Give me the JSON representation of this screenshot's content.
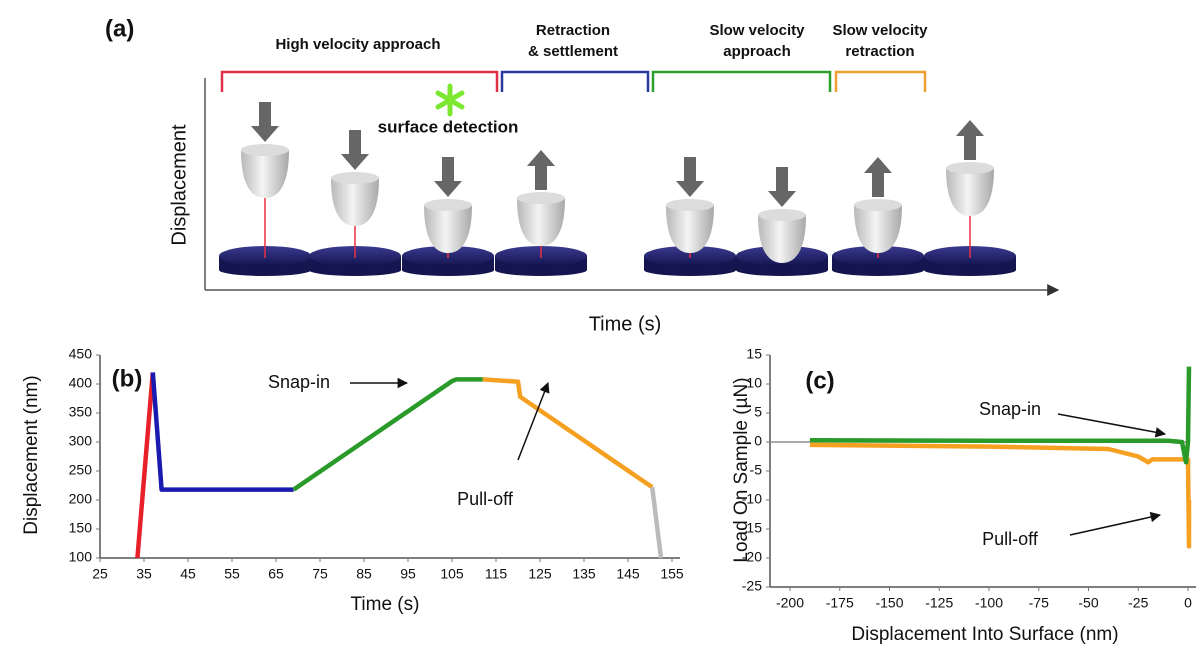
{
  "diagram": {
    "panel_label": "(a)",
    "phases": [
      {
        "lines": [
          "High velocity approach"
        ],
        "color": "#e03048"
      },
      {
        "lines": [
          "Retraction",
          "& settlement"
        ],
        "color": "#2a3a9c"
      },
      {
        "lines": [
          "Slow velocity",
          "approach"
        ],
        "color": "#2aa02a"
      },
      {
        "lines": [
          "Slow velocity",
          "retraction"
        ],
        "color": "#f0a030"
      }
    ],
    "annotation": "surface detection",
    "y_label": "Displacement",
    "x_label": "Time (s)"
  },
  "chart_data": [
    {
      "type": "line",
      "panel_label": "(b)",
      "x_label": "Time (s)",
      "y_label": "Displacement (nm)",
      "xlim": [
        25,
        155
      ],
      "xticks": [
        25,
        35,
        45,
        55,
        65,
        75,
        85,
        95,
        105,
        115,
        125,
        135,
        145,
        155
      ],
      "ylim": [
        100,
        450
      ],
      "yticks": [
        100,
        150,
        200,
        250,
        300,
        350,
        400,
        450
      ],
      "series": [
        {
          "color": "#e8202a",
          "x": [
            33.5,
            37
          ],
          "values": [
            100,
            420
          ]
        },
        {
          "color": "#1a1ab0",
          "x": [
            37,
            39,
            69
          ],
          "values": [
            420,
            218,
            218
          ]
        },
        {
          "color": "#2a9a2a",
          "x": [
            69,
            105,
            106,
            112
          ],
          "values": [
            218,
            405,
            408,
            408
          ]
        },
        {
          "color": "#f5a020",
          "x": [
            112,
            120,
            120.5,
            150.5
          ],
          "values": [
            408,
            404,
            378,
            222
          ]
        },
        {
          "color": "#bbbbbb",
          "x": [
            150.5,
            152.5
          ],
          "values": [
            222,
            100
          ]
        }
      ],
      "annotations": [
        "Snap-in",
        "Pull-off"
      ]
    },
    {
      "type": "line",
      "panel_label": "(c)",
      "x_label": "Displacement Into Surface (nm)",
      "y_label": "Load On Sample (µN)",
      "xlim": [
        -200,
        0
      ],
      "xticks": [
        -200,
        -175,
        -150,
        -125,
        -100,
        -75,
        -50,
        -25,
        0
      ],
      "ylim": [
        -25,
        15
      ],
      "yticks": [
        -25,
        -20,
        -15,
        -10,
        -5,
        0,
        5,
        10,
        15
      ],
      "series": [
        {
          "color": "#f5a020",
          "x": [
            -190,
            -100,
            -40,
            -25,
            -20,
            -18,
            0,
            0.5,
            0.5
          ],
          "values": [
            -0.5,
            -0.8,
            -1.2,
            -2.5,
            -3.5,
            -3,
            -3,
            -18,
            -10
          ]
        },
        {
          "color": "#2a9a2a",
          "x": [
            -190,
            -100,
            -10,
            -3,
            -1,
            0,
            0.5
          ],
          "values": [
            0.3,
            0.2,
            0.2,
            0,
            -3.5,
            0,
            13
          ]
        }
      ],
      "annotations": [
        "Snap-in",
        "Pull-off"
      ]
    }
  ]
}
